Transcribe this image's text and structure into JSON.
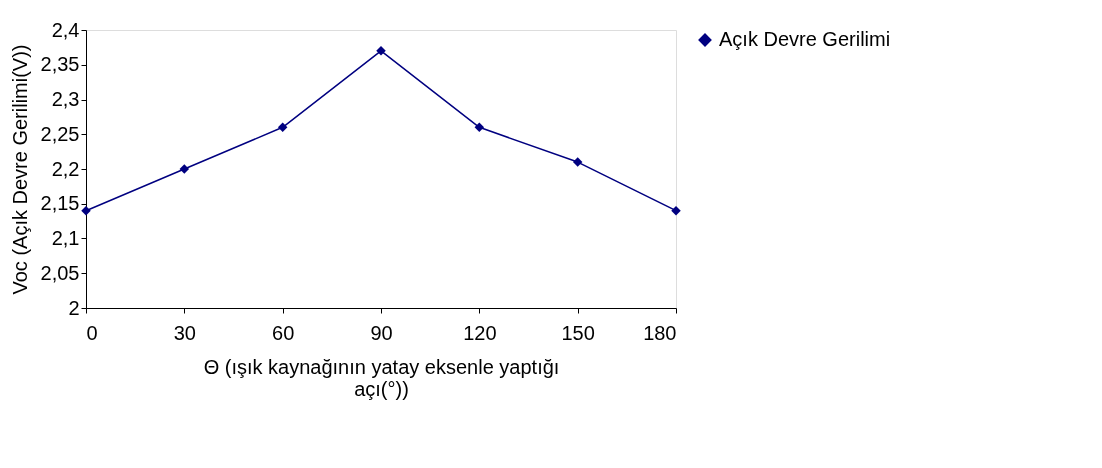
{
  "chart_data": {
    "type": "line",
    "xlabel": "Θ (ışık kaynağının yatay eksenle yaptığı açı(°))",
    "ylabel": "Voc (Açık Devre Gerilimi(V))",
    "x": [
      0,
      30,
      60,
      90,
      120,
      150,
      180
    ],
    "series": [
      {
        "name": "Açık Devre Gerilimi",
        "color": "#000080",
        "values": [
          2.14,
          2.2,
          2.26,
          2.37,
          2.26,
          2.21,
          2.14
        ]
      }
    ],
    "xlim": [
      0,
      180
    ],
    "xticks": [
      0,
      30,
      60,
      90,
      120,
      150,
      180
    ],
    "ylim": [
      2,
      2.4
    ],
    "yticks": [
      {
        "value": 2,
        "label": "2"
      },
      {
        "value": 2.05,
        "label": "2,05"
      },
      {
        "value": 2.1,
        "label": "2,1"
      },
      {
        "value": 2.15,
        "label": "2,15"
      },
      {
        "value": 2.2,
        "label": "2,2"
      },
      {
        "value": 2.25,
        "label": "2,25"
      },
      {
        "value": 2.3,
        "label": "2,3"
      },
      {
        "value": 2.35,
        "label": "2,35"
      },
      {
        "value": 2.4,
        "label": "2,4"
      }
    ],
    "grid": false,
    "legend": "right",
    "marker": "diamond",
    "line_style": "solid"
  }
}
